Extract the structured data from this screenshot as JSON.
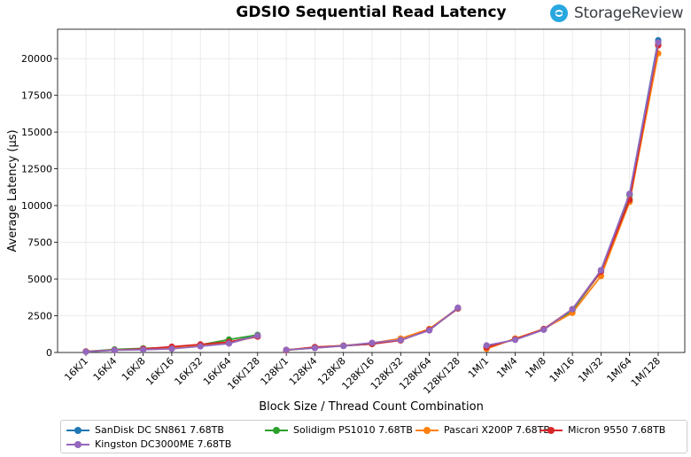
{
  "brand": {
    "name": "StorageReview",
    "logo_color": "#29a8e0"
  },
  "chart_data": {
    "type": "line",
    "title": "GDSIO Sequential Read Latency",
    "xlabel": "Block Size / Thread Count Combination",
    "ylabel": "Average Latency (μs)",
    "ylim": [
      0,
      22000
    ],
    "yticks": [
      0,
      2500,
      5000,
      7500,
      10000,
      12500,
      15000,
      17500,
      20000
    ],
    "ytick_labels": [
      "0",
      "2500",
      "5000",
      "7500",
      "10000",
      "12500",
      "15000",
      "17500",
      "20000"
    ],
    "grid": true,
    "legend_position": "bottom",
    "categories": [
      "16K/1",
      "16K/4",
      "16K/8",
      "16K/16",
      "16K/32",
      "16K/64",
      "16K/128",
      "128K/1",
      "128K/4",
      "128K/8",
      "128K/16",
      "128K/32",
      "128K/64",
      "128K/128",
      "1M/1",
      "1M/4",
      "1M/8",
      "1M/16",
      "1M/32",
      "1M/64",
      "1M/128"
    ],
    "groups": [
      [
        0,
        6
      ],
      [
        7,
        13
      ],
      [
        14,
        20
      ]
    ],
    "series": [
      {
        "name": "SanDisk DC SN861 7.68TB",
        "color": "#1f77b4",
        "values": [
          60,
          180,
          230,
          320,
          480,
          700,
          1150,
          170,
          330,
          450,
          580,
          850,
          1550,
          3000,
          400,
          880,
          1580,
          2900,
          5600,
          10800,
          21250
        ]
      },
      {
        "name": "Solidigm PS1010 7.68TB",
        "color": "#2ca02c",
        "values": [
          65,
          210,
          280,
          340,
          520,
          880,
          1200,
          160,
          320,
          460,
          600,
          860,
          1560,
          3000,
          400,
          880,
          1560,
          2850,
          5500,
          10700,
          21000
        ]
      },
      {
        "name": "Pascari X200P 7.68TB",
        "color": "#ff7f0e",
        "values": [
          70,
          170,
          220,
          300,
          470,
          650,
          1100,
          180,
          360,
          470,
          640,
          950,
          1600,
          3020,
          250,
          950,
          1600,
          2700,
          5200,
          10250,
          20350
        ]
      },
      {
        "name": "Micron 9550 7.68TB",
        "color": "#d62728",
        "values": [
          70,
          160,
          250,
          390,
          550,
          720,
          1080,
          150,
          370,
          460,
          580,
          820,
          1550,
          3000,
          350,
          900,
          1600,
          2950,
          5500,
          10400,
          20900
        ]
      },
      {
        "name": "Kingston DC3000ME 7.68TB",
        "color": "#9467bd",
        "values": [
          55,
          160,
          190,
          250,
          420,
          610,
          1150,
          180,
          300,
          450,
          660,
          850,
          1500,
          3050,
          480,
          860,
          1550,
          2950,
          5600,
          10800,
          21100
        ]
      }
    ]
  }
}
